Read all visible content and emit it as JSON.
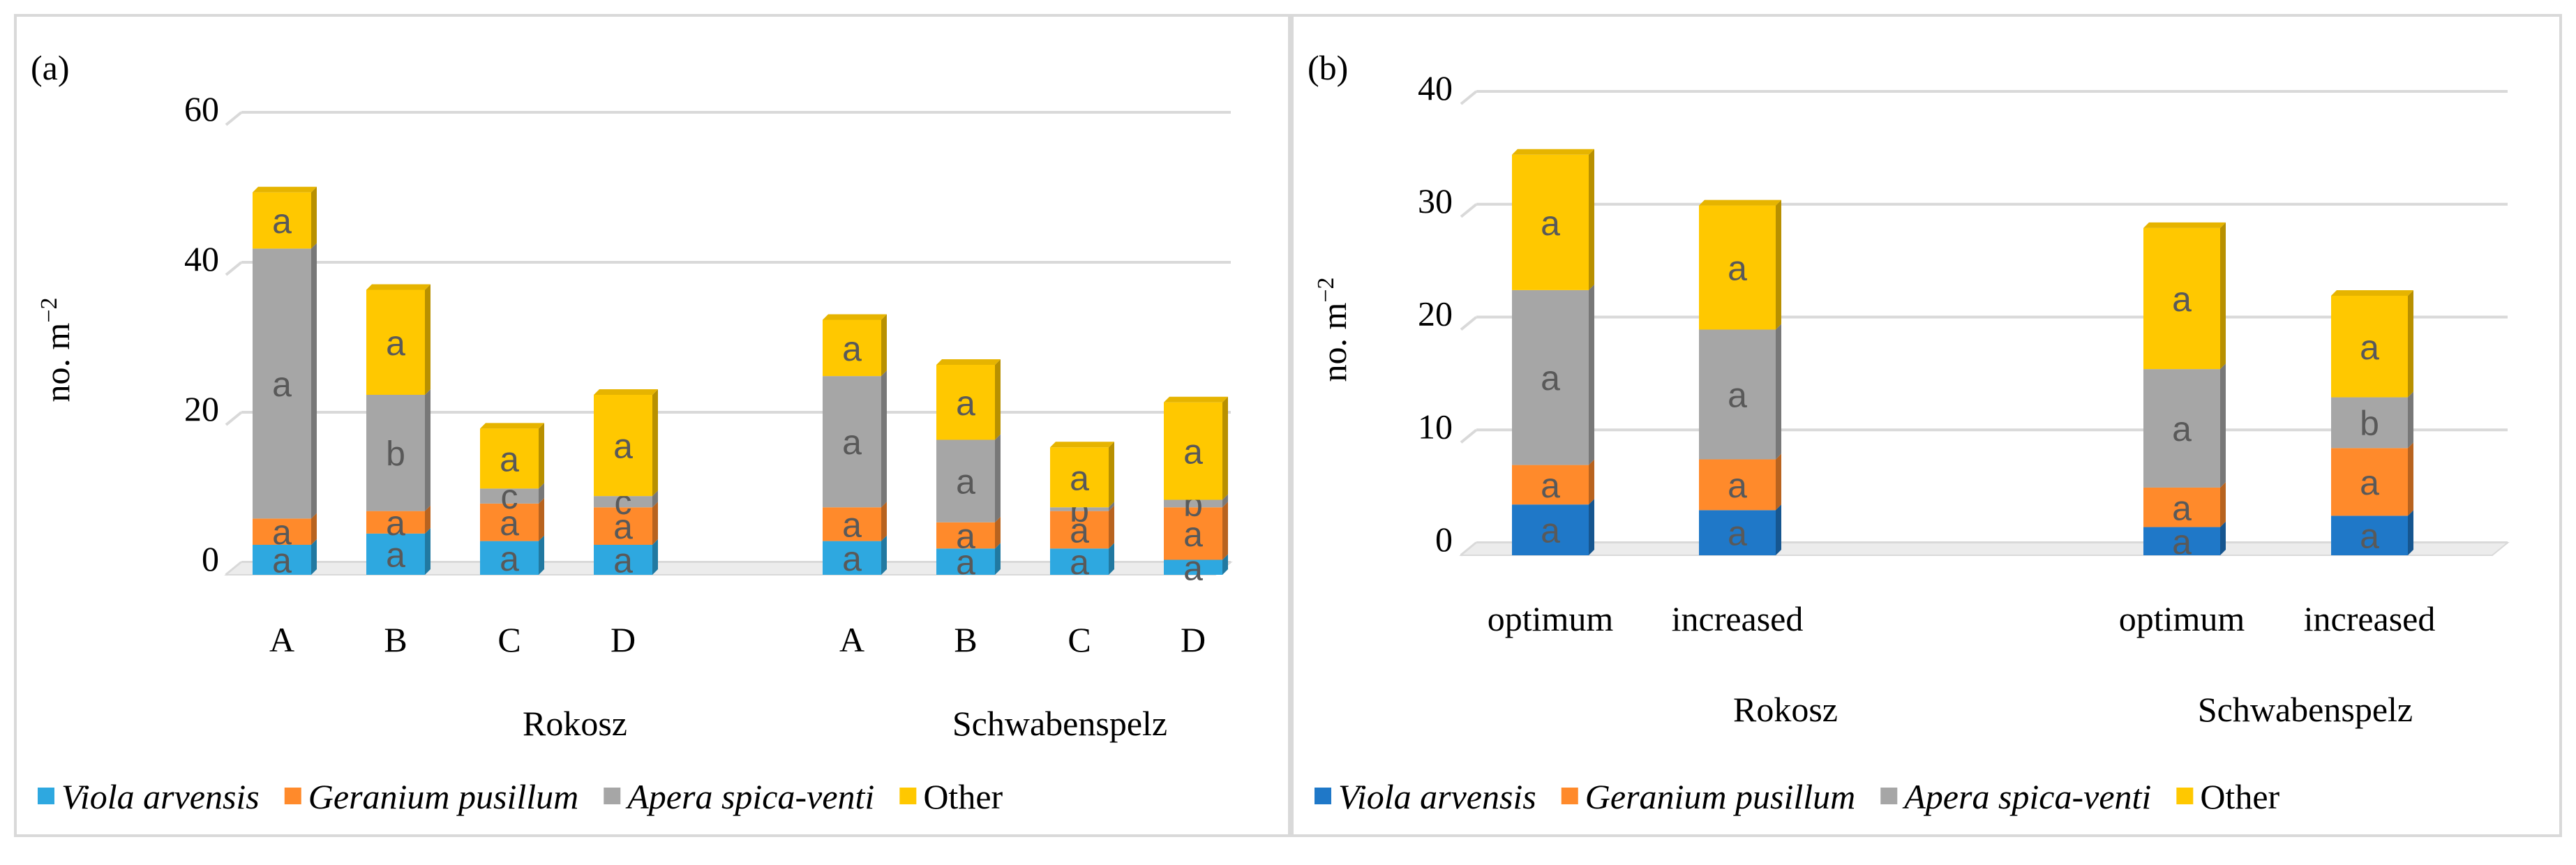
{
  "chart_data": [
    {
      "type": "bar",
      "stacked": true,
      "panel_label": "(a)",
      "ylabel": "no. m",
      "ylabel_sup": "−2",
      "ylim": [
        0,
        60
      ],
      "yticks": [
        0,
        20,
        40,
        60
      ],
      "grid": true,
      "legend_position": "bottom",
      "groups": [
        {
          "name": "Rokosz",
          "categories": [
            "A",
            "B",
            "C",
            "D"
          ]
        },
        {
          "name": "Schwabenspelz",
          "categories": [
            "A",
            "B",
            "C",
            "D"
          ]
        }
      ],
      "series": [
        {
          "name": "Viola arvensis",
          "italic": true,
          "color": "#2ea8e0",
          "values": [
            4,
            5.5,
            4.5,
            4,
            4.5,
            3.5,
            3.5,
            2
          ],
          "labels": [
            "a",
            "a",
            "a",
            "a",
            "a",
            "a",
            "a",
            "a"
          ]
        },
        {
          "name": "Geranium pusillum",
          "italic": true,
          "color": "#ff8a2b",
          "values": [
            3.5,
            3,
            5,
            5,
            4.5,
            3.5,
            5,
            7
          ],
          "labels": [
            "a",
            "a",
            "a",
            "a",
            "a",
            "a",
            "a",
            "a"
          ]
        },
        {
          "name": "Apera spica-venti",
          "italic": true,
          "color": "#a6a6a6",
          "values": [
            36,
            15.5,
            2,
            1.5,
            17.5,
            11,
            0.5,
            1
          ],
          "labels": [
            "a",
            "b",
            "c",
            "c",
            "a",
            "a",
            "b",
            "b"
          ]
        },
        {
          "name": "Other",
          "italic": false,
          "color": "#ffc800",
          "values": [
            7.5,
            14,
            8,
            13.5,
            7.5,
            10,
            8,
            13
          ],
          "labels": [
            "a",
            "a",
            "a",
            "a",
            "a",
            "a",
            "a",
            "a"
          ]
        }
      ]
    },
    {
      "type": "bar",
      "stacked": true,
      "panel_label": "(b)",
      "ylabel": "no. m",
      "ylabel_sup": "−2",
      "ylim": [
        0,
        40
      ],
      "yticks": [
        0,
        10,
        20,
        30,
        40
      ],
      "grid": true,
      "legend_position": "bottom",
      "groups": [
        {
          "name": "Rokosz",
          "categories": [
            "optimum",
            "increased"
          ]
        },
        {
          "name": "Schwabenspelz",
          "categories": [
            "optimum",
            "increased"
          ]
        }
      ],
      "series": [
        {
          "name": "Viola arvensis",
          "italic": true,
          "color": "#1f78c8",
          "values": [
            4.5,
            4,
            2.5,
            3.5
          ],
          "labels": [
            "a",
            "a",
            "a",
            "a"
          ]
        },
        {
          "name": "Geranium pusillum",
          "italic": true,
          "color": "#ff8a2b",
          "values": [
            3.5,
            4.5,
            3.5,
            6
          ],
          "labels": [
            "a",
            "a",
            "a",
            "a"
          ]
        },
        {
          "name": "Apera spica-venti",
          "italic": true,
          "color": "#a6a6a6",
          "values": [
            15.5,
            11.5,
            10.5,
            4.5
          ],
          "labels": [
            "a",
            "a",
            "a",
            "b"
          ]
        },
        {
          "name": "Other",
          "italic": false,
          "color": "#ffc800",
          "values": [
            12,
            11,
            12.5,
            9
          ],
          "labels": [
            "a",
            "a",
            "a",
            "a"
          ]
        }
      ]
    }
  ]
}
